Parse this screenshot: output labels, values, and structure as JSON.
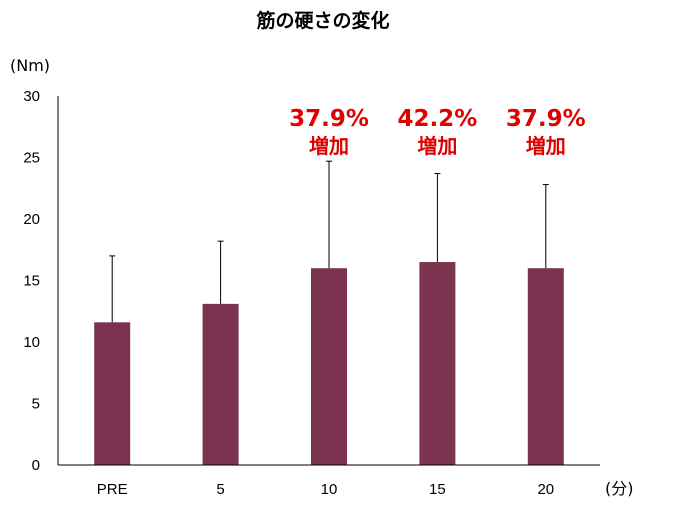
{
  "chart_data": {
    "type": "bar",
    "title": "筋の硬さの変化",
    "ylabel": "(Nm)",
    "xlabel": "(分)",
    "categories": [
      "PRE",
      "5",
      "10",
      "15",
      "20"
    ],
    "values": [
      11.6,
      13.1,
      16.0,
      16.5,
      16.0
    ],
    "error_upper": [
      17.0,
      18.2,
      24.7,
      23.7,
      22.8
    ],
    "ylim": [
      0,
      30
    ],
    "yticks": [
      "0",
      "5",
      "10",
      "15",
      "20",
      "25",
      "30"
    ],
    "grid": false,
    "bar_color": "#7b3350",
    "annotations": [
      {
        "category": "10",
        "percent": "37.9%",
        "label": "増加"
      },
      {
        "category": "15",
        "percent": "42.2%",
        "label": "増加"
      },
      {
        "category": "20",
        "percent": "37.9%",
        "label": "増加"
      }
    ],
    "annotation_color": "#e00000"
  }
}
